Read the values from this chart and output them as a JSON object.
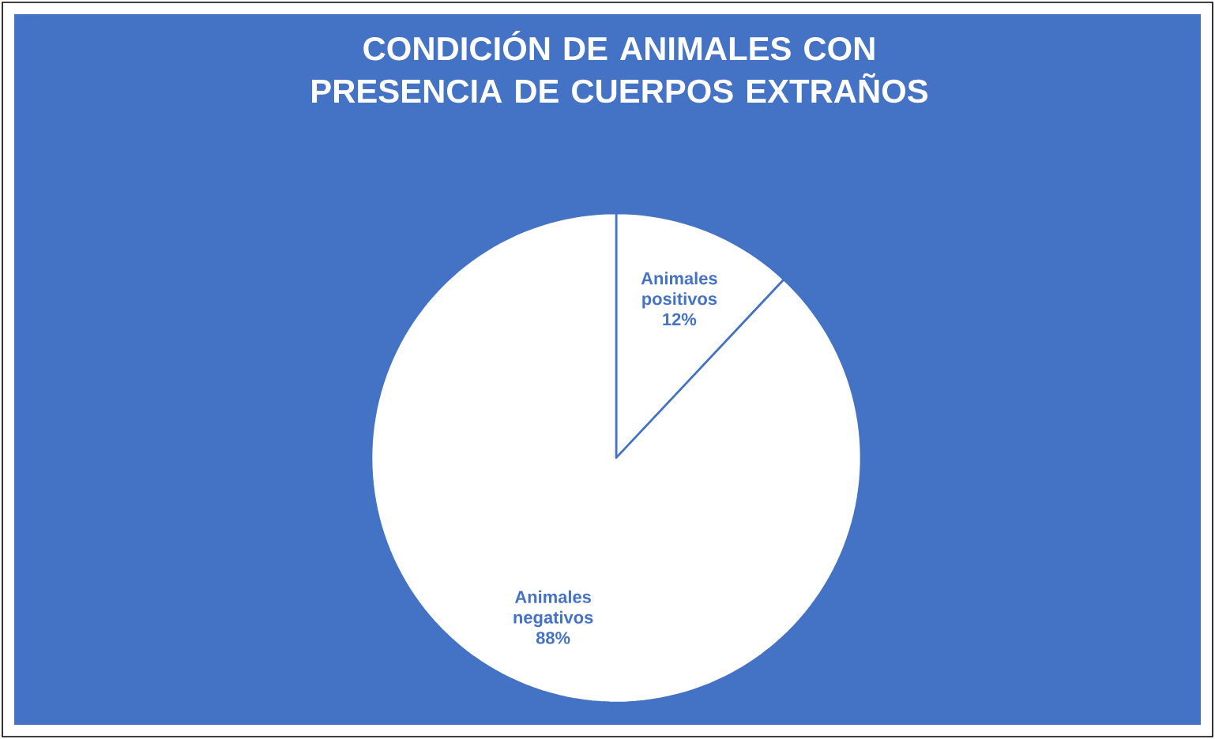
{
  "chart_data": {
    "type": "pie",
    "title": "CONDICIÓN DE ANIMALES CON PRESENCIA DE CUERPOS EXTRAÑOS",
    "categories": [
      "Animales positivos",
      "Animales negativos"
    ],
    "values": [
      12,
      88
    ],
    "colors": [
      "#ffffff",
      "#ffffff"
    ],
    "value_labels": [
      "12%",
      "88%"
    ],
    "legend": false
  }
}
